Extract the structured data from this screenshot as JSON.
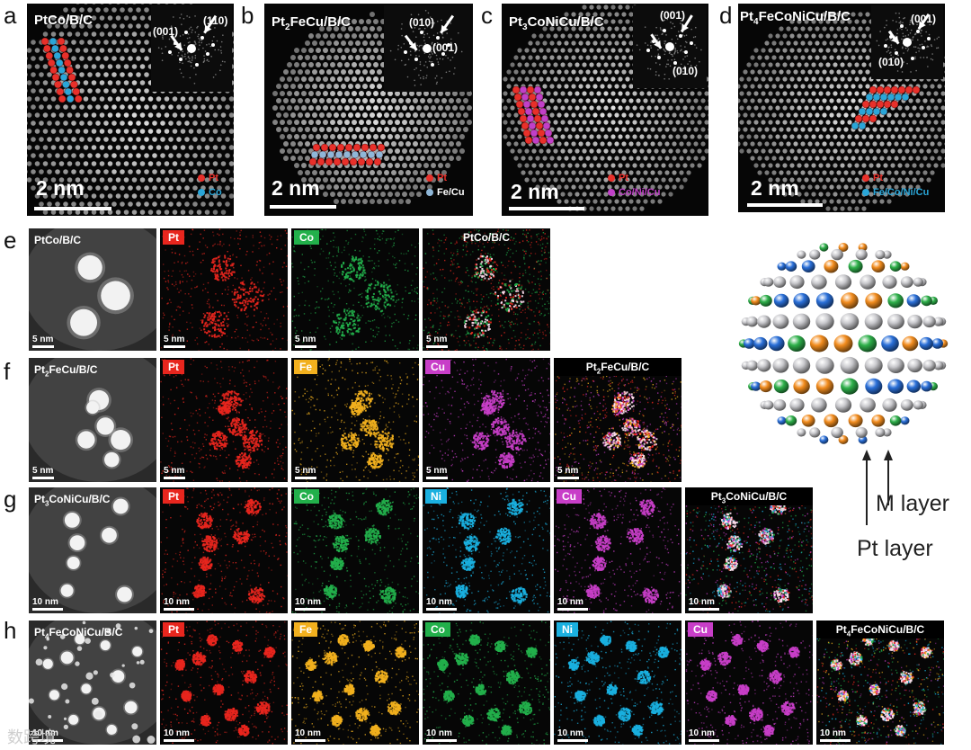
{
  "labels": [
    "a",
    "b",
    "c",
    "d",
    "e",
    "f",
    "g",
    "h"
  ],
  "hrtem": [
    {
      "title": "PtCo/B/C",
      "title_parts": [
        "PtCo/B/C"
      ],
      "scale": "2 nm",
      "miller": [
        "(001)",
        "(110)"
      ],
      "legend": [
        {
          "text": "Pt",
          "color": "#e8302a"
        },
        {
          "text": "Co",
          "color": "#2aa6d8"
        }
      ]
    },
    {
      "title": "Pt2FeCu/B/C",
      "title_parts": [
        "Pt",
        "2",
        "FeCu/B/C"
      ],
      "scale": "2 nm",
      "miller": [
        "(010)",
        "(001)"
      ],
      "legend": [
        {
          "text": "Pt",
          "color": "#e8302a"
        },
        {
          "text": "Fe/Cu",
          "color": "#8fb7d8"
        }
      ]
    },
    {
      "title": "Pt3CoNiCu/B/C",
      "title_parts": [
        "Pt",
        "3",
        "CoNiCu/B/C"
      ],
      "scale": "2 nm",
      "miller": [
        "(001)",
        "(010)"
      ],
      "legend": [
        {
          "text": "Pt",
          "color": "#e8302a"
        },
        {
          "text": "Co/Ni/Cu",
          "color": "#c040c8"
        }
      ]
    },
    {
      "title": "Pt4FeCoNiCu/B/C",
      "title_parts": [
        "Pt",
        "4",
        "FeCoNiCu/B/C"
      ],
      "scale": "2 nm",
      "miller": [
        "(001)",
        "(010)"
      ],
      "legend": [
        {
          "text": "Pt",
          "color": "#e8302a"
        },
        {
          "text": "Fe/Co/Ni/Cu",
          "color": "#2aa6d8"
        }
      ]
    }
  ],
  "maps": {
    "e": {
      "sample": "PtCo/B/C",
      "sample_parts": [
        "PtCo/B/C"
      ],
      "scale": "5 nm",
      "elements": [
        {
          "name": "Pt",
          "color": "#e8261e"
        },
        {
          "name": "Co",
          "color": "#22b04b"
        }
      ]
    },
    "f": {
      "sample": "Pt2FeCu/B/C",
      "sample_parts": [
        "Pt",
        "2",
        "FeCu/B/C"
      ],
      "scale": "5 nm",
      "elements": [
        {
          "name": "Pt",
          "color": "#e8261e"
        },
        {
          "name": "Fe",
          "color": "#f2b01e"
        },
        {
          "name": "Cu",
          "color": "#c83ec8"
        }
      ]
    },
    "g": {
      "sample": "Pt3CoNiCu/B/C",
      "sample_parts": [
        "Pt",
        "3",
        "CoNiCu/B/C"
      ],
      "scale": "10 nm",
      "elements": [
        {
          "name": "Pt",
          "color": "#e8261e"
        },
        {
          "name": "Co",
          "color": "#22b04b"
        },
        {
          "name": "Ni",
          "color": "#1ab0e0"
        },
        {
          "name": "Cu",
          "color": "#c83ec8"
        }
      ]
    },
    "h": {
      "sample": "Pt4FeCoNiCu/B/C",
      "sample_parts": [
        "Pt",
        "4",
        "FeCoNiCu/B/C"
      ],
      "scale": "10 nm",
      "elements": [
        {
          "name": "Pt",
          "color": "#e8261e"
        },
        {
          "name": "Fe",
          "color": "#f2b01e"
        },
        {
          "name": "Co",
          "color": "#22b04b"
        },
        {
          "name": "Ni",
          "color": "#1ab0e0"
        },
        {
          "name": "Cu",
          "color": "#c83ec8"
        }
      ]
    }
  },
  "model": {
    "m_layer": "M layer",
    "pt_layer": "Pt layer",
    "colors": {
      "pt": "#c8c8cc",
      "orange": "#f28c1e",
      "green": "#2eb04a",
      "blue": "#2a6fd8"
    }
  },
  "watermark": "数跨境"
}
